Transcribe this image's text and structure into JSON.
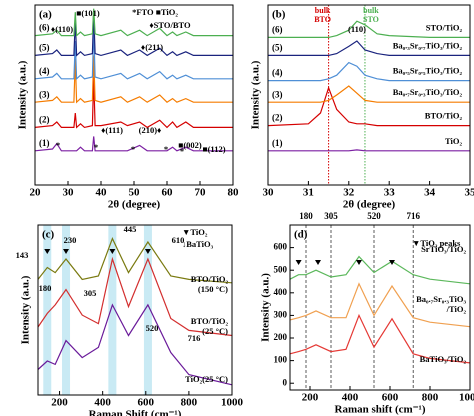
{
  "chart_data": [
    {
      "type": "line",
      "panel_label": "(a)",
      "xlabel": "2θ (degree)",
      "ylabel": "Intensity (a.u.)",
      "xlim": [
        20,
        80
      ],
      "xticks": [
        20,
        30,
        40,
        50,
        60,
        70,
        80
      ],
      "ylim": [
        0,
        100
      ],
      "x": [
        20,
        25.3,
        26.6,
        28,
        31.8,
        32.2,
        32.6,
        33.8,
        35,
        37.4,
        37.8,
        38.2,
        40,
        46,
        48,
        51.7,
        54,
        57.8,
        60,
        61.7,
        63,
        65.7,
        68,
        70,
        75,
        80
      ],
      "series": [
        {
          "name": "(1)",
          "color": "#7b1fa2",
          "values": [
            19,
            20,
            23,
            19,
            19,
            19,
            19,
            21,
            19,
            19,
            27,
            19,
            19,
            19,
            19,
            22,
            19,
            19,
            19,
            21,
            19,
            21,
            19,
            19,
            19,
            19
          ]
        },
        {
          "name": "(2)",
          "color": "#d50000",
          "values": [
            32,
            33,
            35,
            32,
            32,
            40,
            32,
            34,
            32,
            33,
            60,
            33,
            33,
            35,
            33,
            35,
            32,
            36,
            32,
            35,
            32,
            35,
            32,
            32,
            32,
            32
          ]
        },
        {
          "name": "(3)",
          "color": "#f57c00",
          "values": [
            46,
            47,
            49,
            46,
            46,
            70,
            46,
            48,
            46,
            47,
            72,
            47,
            46,
            49,
            46,
            49,
            46,
            50,
            46,
            48,
            46,
            48,
            46,
            46,
            46,
            46
          ]
        },
        {
          "name": "(4)",
          "color": "#4f8fd6",
          "values": [
            59,
            60,
            62,
            59,
            59,
            80,
            59,
            61,
            59,
            60,
            88,
            60,
            59,
            62,
            59,
            62,
            59,
            63,
            59,
            61,
            59,
            61,
            59,
            59,
            59,
            59
          ]
        },
        {
          "name": "(5)",
          "color": "#1a237e",
          "values": [
            72,
            73,
            75,
            72,
            72,
            92,
            72,
            74,
            72,
            73,
            96,
            73,
            72,
            75,
            72,
            75,
            72,
            76,
            72,
            74,
            72,
            74,
            72,
            72,
            72,
            72
          ]
        },
        {
          "name": "(6)",
          "color": "#4caf50",
          "values": [
            83,
            84,
            86,
            83,
            83,
            96,
            83,
            85,
            83,
            84,
            98,
            84,
            83,
            86,
            83,
            86,
            83,
            87,
            83,
            85,
            83,
            85,
            83,
            83,
            83,
            83
          ]
        }
      ],
      "annotations": [
        "*FTO ■TiO₂",
        "♦STO/BTO",
        "■(101)",
        "♦(110)",
        "♦(211)",
        "♦(111)",
        "(210)♦",
        "■(002)",
        "■(112)",
        "*",
        "*",
        "*",
        "*",
        "*"
      ]
    },
    {
      "type": "line",
      "panel_label": "(b)",
      "xlabel": "2θ (degree)",
      "ylabel": "Intensity (a.u.)",
      "xlim": [
        30,
        35
      ],
      "xticks": [
        30,
        31,
        32,
        33,
        34,
        35
      ],
      "ylim": [
        0,
        100
      ],
      "x": [
        30,
        31,
        31.3,
        31.5,
        31.7,
        32,
        32.2,
        32.4,
        32.7,
        33,
        34,
        35
      ],
      "reference_lines": [
        {
          "value": 31.5,
          "label": [
            "bulk",
            "BTO"
          ],
          "color": "#d50000"
        },
        {
          "value": 32.4,
          "label": [
            "bulk",
            "STO"
          ],
          "color": "#4caf50"
        }
      ],
      "series": [
        {
          "name": "(1)",
          "label": [
            "TiO₂"
          ],
          "color": "#7b1fa2",
          "values": [
            19,
            19,
            19,
            19,
            19,
            19,
            19.5,
            19,
            19,
            19,
            19,
            19
          ]
        },
        {
          "name": "(2)",
          "label": [
            "BTO/TiO₂"
          ],
          "color": "#d50000",
          "values": [
            33,
            34,
            40,
            54,
            42,
            35,
            34,
            34,
            33,
            33,
            33,
            33
          ]
        },
        {
          "name": "(3)",
          "label": [
            "Ba₀.₇Sr₀.₃TiO₃/TiO₂"
          ],
          "color": "#f57c00",
          "values": [
            46,
            46,
            46,
            47,
            50,
            55,
            51,
            47,
            46,
            46,
            46,
            46
          ]
        },
        {
          "name": "(4)",
          "label": [
            "Ba₀.₅Sr₀.₅TiO₃/TiO₂"
          ],
          "color": "#4f8fd6",
          "values": [
            58,
            58,
            58,
            59,
            61,
            68,
            66,
            61,
            59,
            58,
            58,
            58
          ]
        },
        {
          "name": "(5)",
          "label": [
            "Ba₀.₃Sr₀.₇TiO₃/TiO₂"
          ],
          "color": "#1a237e",
          "values": [
            72,
            72,
            72,
            72,
            73,
            77,
            80,
            75,
            73,
            72,
            72,
            72
          ]
        },
        {
          "name": "(6)",
          "label": [
            "STO/TiO₂"
          ],
          "color": "#4caf50",
          "values": [
            82,
            82,
            82,
            82,
            83,
            86,
            91,
            89,
            84,
            83,
            82,
            82
          ]
        }
      ],
      "annotations": [
        "(110)"
      ]
    },
    {
      "type": "line",
      "panel_label": "(c)",
      "xlabel": "Raman Shift (cm⁻¹)",
      "ylabel": "Intensity (a.u.)",
      "xlim": [
        100,
        1000
      ],
      "xticks": [
        200,
        400,
        600,
        800,
        1000
      ],
      "ylim": [
        0,
        100
      ],
      "bands": [
        143,
        230,
        445,
        610
      ],
      "x": [
        100,
        143,
        180,
        230,
        305,
        380,
        445,
        520,
        610,
        716,
        800,
        1000
      ],
      "series": [
        {
          "label": [
            "TiO₂(25 °C)"
          ],
          "color": "#6a1b9a",
          "values": [
            15,
            20,
            18,
            32,
            22,
            28,
            53,
            35,
            53,
            25,
            12,
            6
          ]
        },
        {
          "label": [
            "BTO/TiO₂",
            "(25 °C)"
          ],
          "color": "#d32f2f",
          "values": [
            40,
            48,
            53,
            62,
            47,
            42,
            80,
            52,
            80,
            45,
            38,
            35
          ]
        },
        {
          "label": [
            "BTO/TiO₂",
            "(150 °C)"
          ],
          "color": "#7a7a10",
          "values": [
            68,
            75,
            72,
            80,
            68,
            70,
            92,
            72,
            90,
            70,
            68,
            66
          ]
        }
      ],
      "annotations": [
        "▼TiO₂",
        "↓BaTiO₃",
        "143",
        "230",
        "445",
        "610",
        "180",
        "305",
        "520",
        "716"
      ]
    },
    {
      "type": "line",
      "panel_label": "(d)",
      "xlabel": "Raman shift (cm⁻¹)",
      "ylabel": "Intensity (a.u.)",
      "xlim": [
        100,
        1000
      ],
      "xticks": [
        200,
        400,
        600,
        800,
        1000
      ],
      "ylim": [
        -30,
        700
      ],
      "yticks": [
        0,
        100,
        200,
        300,
        400,
        500,
        600
      ],
      "x2ticks": [
        180,
        305,
        520,
        716
      ],
      "x": [
        100,
        143,
        180,
        230,
        305,
        380,
        445,
        520,
        610,
        716,
        800,
        1000
      ],
      "series": [
        {
          "label": [
            "BaTiO₃/TiO₂"
          ],
          "color": "#e53935",
          "values": [
            130,
            140,
            150,
            170,
            140,
            150,
            300,
            160,
            285,
            130,
            110,
            90
          ]
        },
        {
          "label": [
            "Ba₀.₇Sr₀.₃TiO₃",
            "/TiO₂"
          ],
          "color": "#f0a050",
          "values": [
            280,
            290,
            300,
            320,
            290,
            290,
            440,
            300,
            430,
            290,
            270,
            250
          ]
        },
        {
          "label": [
            "SrTiO₃/TiO₂"
          ],
          "color": "#5cb85c",
          "values": [
            460,
            480,
            480,
            500,
            470,
            480,
            560,
            490,
            540,
            480,
            460,
            440
          ]
        }
      ],
      "annotations": [
        "▼TiO₂ peaks"
      ]
    }
  ]
}
